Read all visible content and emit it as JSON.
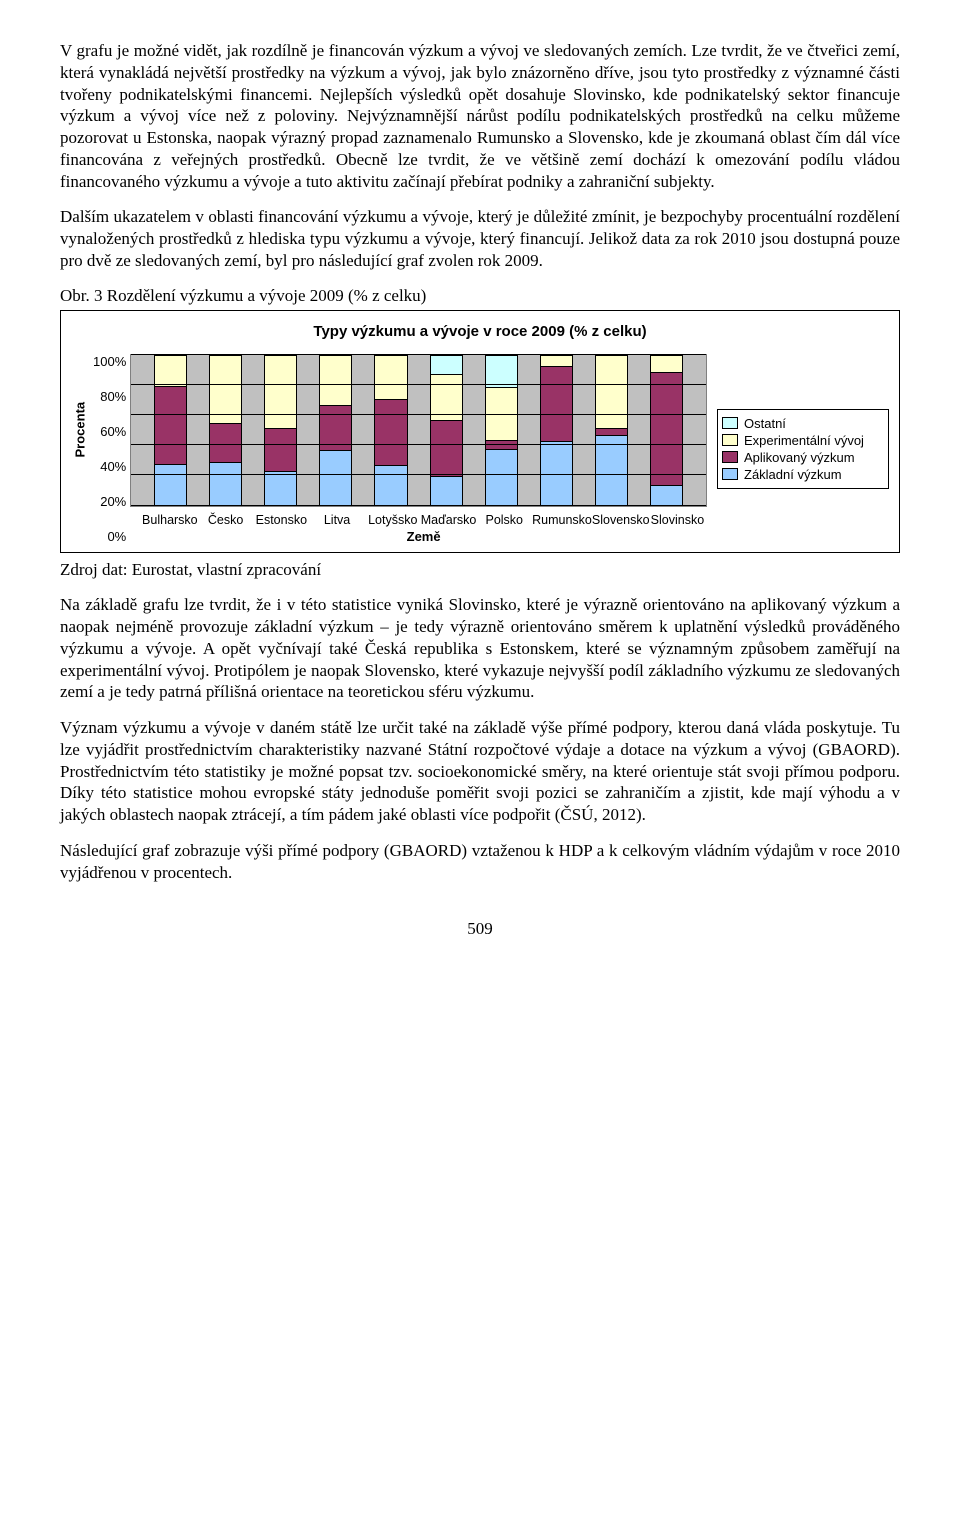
{
  "paragraphs": {
    "p1": "V grafu je možné vidět, jak rozdílně je financován výzkum a vývoj ve sledovaných zemích. Lze tvrdit, že ve čtveřici zemí, která vynakládá největší prostředky na výzkum a vývoj, jak bylo znázorněno dříve, jsou tyto prostředky z významné části tvořeny podnikatelskými financemi. Nejlepších výsledků opět dosahuje Slovinsko, kde podnikatelský sektor financuje výzkum a vývoj více než z poloviny. Nejvýznamnější nárůst podílu podnikatelských prostředků na celku můžeme pozorovat u Estonska, naopak výrazný propad zaznamenalo Rumunsko a Slovensko, kde je zkoumaná oblast čím dál více financována z veřejných prostředků. Obecně lze tvrdit, že ve většině zemí dochází k omezování podílu vládou financovaného výzkumu a vývoje a tuto aktivitu začínají přebírat podniky a zahraniční subjekty.",
    "p2": "Dalším ukazatelem v oblasti financování výzkumu a vývoje, který je důležité zmínit, je bezpochyby procentuální rozdělení vynaložených prostředků z hlediska typu výzkumu a vývoje, který financují. Jelikož data za rok 2010 jsou dostupná pouze pro dvě ze sledovaných zemí, byl pro následující graf zvolen rok 2009.",
    "fig_label": "Obr. 3     Rozdělení výzkumu a vývoje 2009 (% z celku)",
    "source": "Zdroj dat: Eurostat, vlastní zpracování",
    "p3": "Na základě grafu lze tvrdit, že i v této statistice vyniká Slovinsko, které je výrazně orientováno na aplikovaný výzkum a naopak nejméně provozuje základní výzkum – je tedy výrazně orientováno směrem k uplatnění výsledků prováděného výzkumu a vývoje. A opět vyčnívají také Česká republika s Estonskem, které se významným způsobem zaměřují na experimentální vývoj. Protipólem je naopak Slovensko, které vykazuje nejvyšší podíl základního výzkumu ze sledovaných zemí a je tedy patrná přílišná orientace na teoretickou sféru výzkumu.",
    "p4": "Význam výzkumu a vývoje v daném státě lze určit také na základě výše přímé podpory, kterou daná vláda poskytuje. Tu lze vyjádřit prostřednictvím charakteristiky nazvané Státní rozpočtové výdaje a dotace na výzkum a vývoj (GBAORD). Prostřednictvím této statistiky je možné popsat tzv. socioekonomické směry, na které orientuje stát svoji přímou podporu. Díky této statistice mohou evropské státy jednoduše poměřit svoji pozici se zahraničím a zjistit, kde mají výhodu a v jakých oblastech naopak ztrácejí, a tím pádem jaké oblasti více podpořit (ČSÚ, 2012).",
    "p5": "Následující graf zobrazuje výši přímé podpory (GBAORD) vztaženou k HDP a k celkovým vládním výdajům v roce 2010 vyjádřenou v procentech."
  },
  "chart": {
    "type": "stacked-bar",
    "title": "Typy výzkumu a vývoje v roce 2009 (% z celku)",
    "ylabel": "Procenta",
    "xlabel": "Země",
    "ylim": [
      0,
      100
    ],
    "ytick_step": 20,
    "yticks": [
      "100%",
      "80%",
      "60%",
      "40%",
      "20%",
      "0%"
    ],
    "categories": [
      "Bulharsko",
      "Česko",
      "Estonsko",
      "Litva",
      "Lotyšsko",
      "Maďarsko",
      "Polsko",
      "Rumunsko",
      "Slovensko",
      "Slovinsko"
    ],
    "series": [
      "Základní výzkum",
      "Aplikovaný výzkum",
      "Experimentální vývoj",
      "Ostatní"
    ],
    "series_colors": {
      "Základní výzkum": "#99ccff",
      "Aplikovaný výzkum": "#993366",
      "Experimentální vývoj": "#ffffcc",
      "Ostatní": "#ccffff"
    },
    "background_color": "#c0c0c0",
    "grid_color": "#000000",
    "bar_width_pct": 6,
    "data": {
      "Bulharsko": {
        "Základní výzkum": 28,
        "Aplikovaný výzkum": 52,
        "Experimentální vývoj": 20,
        "Ostatní": 0
      },
      "Česko": {
        "Základní výzkum": 29,
        "Aplikovaný výzkum": 26,
        "Experimentální vývoj": 45,
        "Ostatní": 0
      },
      "Estonsko": {
        "Základní výzkum": 23,
        "Aplikovaný výzkum": 29,
        "Experimentální vývoj": 48,
        "Ostatní": 0
      },
      "Litva": {
        "Základní výzkum": 37,
        "Aplikovaný výzkum": 30,
        "Experimentální vývoj": 33,
        "Ostatní": 0
      },
      "Lotyšsko": {
        "Základní výzkum": 27,
        "Aplikovaný výzkum": 44,
        "Experimentální vývoj": 29,
        "Ostatní": 0
      },
      "Maďarsko": {
        "Základní výzkum": 20,
        "Aplikovaný výzkum": 37,
        "Experimentální vývoj": 31,
        "Ostatní": 12
      },
      "Polsko": {
        "Základní výzkum": 38,
        "Aplikovaný výzkum": 6,
        "Experimentální vývoj": 35,
        "Ostatní": 21
      },
      "Rumunsko": {
        "Základní výzkum": 43,
        "Aplikovaný výzkum": 50,
        "Experimentální vývoj": 7,
        "Ostatní": 0
      },
      "Slovensko": {
        "Základní výzkum": 47,
        "Aplikovaný výzkum": 5,
        "Experimentální vývoj": 48,
        "Ostatní": 0
      },
      "Slovinsko": {
        "Základní výzkum": 14,
        "Aplikovaný výzkum": 75,
        "Experimentální vývoj": 11,
        "Ostatní": 0
      }
    },
    "legend_order": [
      "Ostatní",
      "Experimentální vývoj",
      "Aplikovaný výzkum",
      "Základní výzkum"
    ]
  },
  "page_number": "509"
}
